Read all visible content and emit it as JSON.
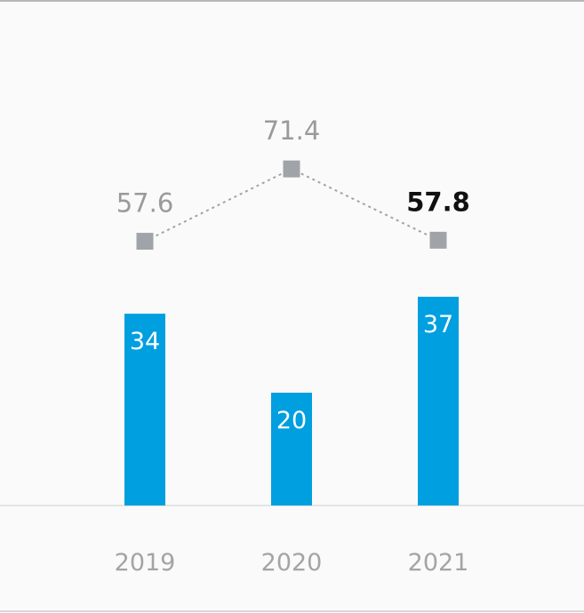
{
  "chart_data": {
    "type": "bar",
    "categories": [
      "2019",
      "2020",
      "2021"
    ],
    "series": [
      {
        "chart_type": "bar",
        "values": [
          34,
          20,
          37
        ],
        "color": "#009fe0"
      },
      {
        "chart_type": "line",
        "values": [
          57.6,
          71.4,
          57.8
        ],
        "color": "#a0a4a8",
        "line_style": "dotted",
        "marker": "square",
        "highlighted_point": "2021"
      }
    ],
    "data_labels": {
      "bar": [
        "34",
        "20",
        "37"
      ],
      "line": [
        "57.6",
        "71.4",
        "57.8"
      ]
    },
    "title": "",
    "xlabel": "",
    "ylabel": "",
    "grid": false,
    "legend": "none"
  }
}
